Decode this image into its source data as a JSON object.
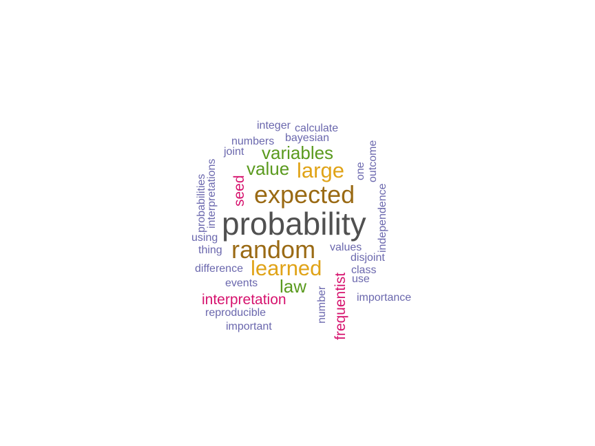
{
  "palette": {
    "gray": "#505050",
    "brown": "#9a6a14",
    "orange": "#e0a317",
    "green": "#5a9a1e",
    "magenta": "#d6136e",
    "purple": "#6a67ad"
  },
  "words": [
    {
      "text": "probability",
      "color": "gray"
    },
    {
      "text": "expected",
      "color": "brown"
    },
    {
      "text": "random",
      "color": "brown"
    },
    {
      "text": "learned",
      "color": "orange"
    },
    {
      "text": "large",
      "color": "orange"
    },
    {
      "text": "value",
      "color": "green"
    },
    {
      "text": "variables",
      "color": "green"
    },
    {
      "text": "law",
      "color": "green"
    },
    {
      "text": "interpretation",
      "color": "magenta"
    },
    {
      "text": "frequentist",
      "color": "magenta"
    },
    {
      "text": "seed",
      "color": "magenta"
    },
    {
      "text": "integer",
      "color": "purple"
    },
    {
      "text": "calculate",
      "color": "purple"
    },
    {
      "text": "bayesian",
      "color": "purple"
    },
    {
      "text": "numbers",
      "color": "purple"
    },
    {
      "text": "joint",
      "color": "purple"
    },
    {
      "text": "interpretations",
      "color": "purple"
    },
    {
      "text": "probabilities",
      "color": "purple"
    },
    {
      "text": "using",
      "color": "purple"
    },
    {
      "text": "thing",
      "color": "purple"
    },
    {
      "text": "difference",
      "color": "purple"
    },
    {
      "text": "events",
      "color": "purple"
    },
    {
      "text": "reproducible",
      "color": "purple"
    },
    {
      "text": "important",
      "color": "purple"
    },
    {
      "text": "number",
      "color": "purple"
    },
    {
      "text": "values",
      "color": "purple"
    },
    {
      "text": "disjoint",
      "color": "purple"
    },
    {
      "text": "class",
      "color": "purple"
    },
    {
      "text": "use",
      "color": "purple"
    },
    {
      "text": "importance",
      "color": "purple"
    },
    {
      "text": "one",
      "color": "purple"
    },
    {
      "text": "outcome",
      "color": "purple"
    },
    {
      "text": "independence",
      "color": "purple"
    }
  ]
}
